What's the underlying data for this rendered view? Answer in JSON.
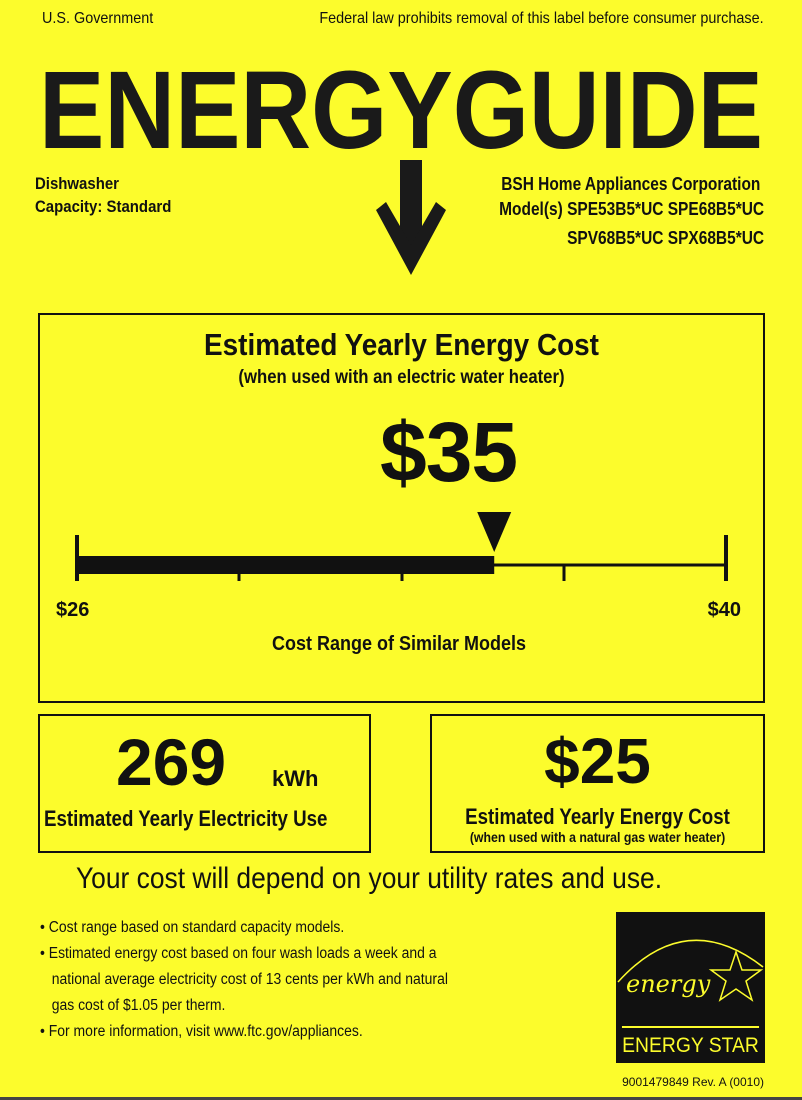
{
  "header": {
    "gov": "U.S. Government",
    "notice": "Federal law prohibits removal of this label before consumer purchase.",
    "logo": "ENERGYGUIDE"
  },
  "product": {
    "type": "Dishwasher",
    "capacity_label": "Capacity:",
    "capacity": "Standard",
    "manufacturer": "BSH Home Appliances Corporation",
    "models_line1": "Model(s) SPE53B5*UC SPE68B5*UC",
    "models_line2": "SPV68B5*UC SPX68B5*UC"
  },
  "main_cost": {
    "title": "Estimated Yearly Energy Cost",
    "subtitle": "(when used with an electric water heater)",
    "value": "$35",
    "value_number": 35,
    "range_min_label": "$26",
    "range_max_label": "$40",
    "range_min": 26,
    "range_max": 40,
    "range_caption": "Cost Range of Similar Models"
  },
  "electricity": {
    "value": "269",
    "unit": "kWh",
    "label": "Estimated Yearly Electricity Use"
  },
  "gas_cost": {
    "value": "$25",
    "label": "Estimated Yearly Energy Cost",
    "sublabel": "(when used with a natural gas water heater)"
  },
  "disclaimer": "Your cost will depend on your utility rates and use.",
  "notes": [
    "Cost range based on standard capacity models.",
    "Estimated energy cost based on four wash loads a week and a",
    "national average electricity cost of 13 cents per kWh and natural",
    "gas cost of $1.05 per therm.",
    "For more information, visit www.ftc.gov/appliances."
  ],
  "energy_star": {
    "script": "energy",
    "label": "ENERGY STAR"
  },
  "label_code": "9001479849 Rev. A (0010)",
  "colors": {
    "background": "#fcfc2c",
    "ink": "#111111"
  }
}
